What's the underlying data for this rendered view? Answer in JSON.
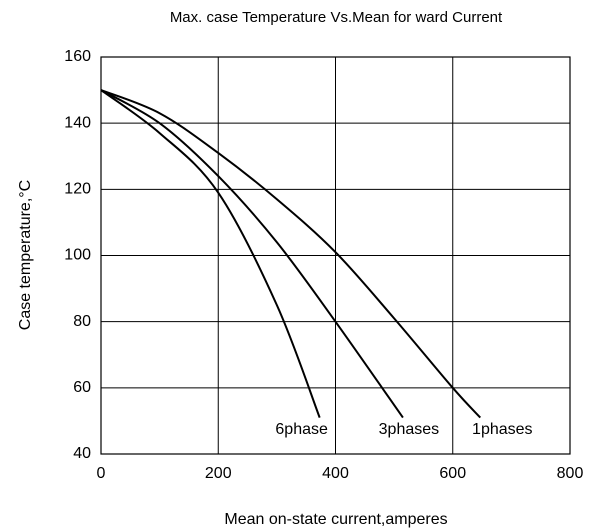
{
  "chart_data": {
    "type": "line",
    "title": "Max. case Temperature  Vs.Mean for ward Current",
    "x_label": "Mean on-state current,amperes",
    "y_label": "Case temperature,°C",
    "xlim": [
      0,
      800
    ],
    "xticks": [
      0,
      200,
      400,
      600,
      800
    ],
    "ylim": [
      40,
      160
    ],
    "yticks": [
      40,
      60,
      80,
      100,
      120,
      140,
      160
    ],
    "grid": true,
    "series": [
      {
        "name": "6phase",
        "color": "#000000",
        "x": [
          0,
          100,
          200,
          300,
          373
        ],
        "values": [
          150,
          137,
          119,
          85,
          51
        ]
      },
      {
        "name": "3phases",
        "color": "#000000",
        "x": [
          0,
          100,
          200,
          300,
          400,
          515
        ],
        "values": [
          150,
          140,
          124,
          104,
          80,
          51
        ]
      },
      {
        "name": "1phases",
        "color": "#000000",
        "x": [
          0,
          100,
          200,
          300,
          400,
          500,
          600,
          647
        ],
        "values": [
          150,
          143,
          131,
          117,
          101,
          81,
          60,
          51
        ]
      }
    ]
  }
}
